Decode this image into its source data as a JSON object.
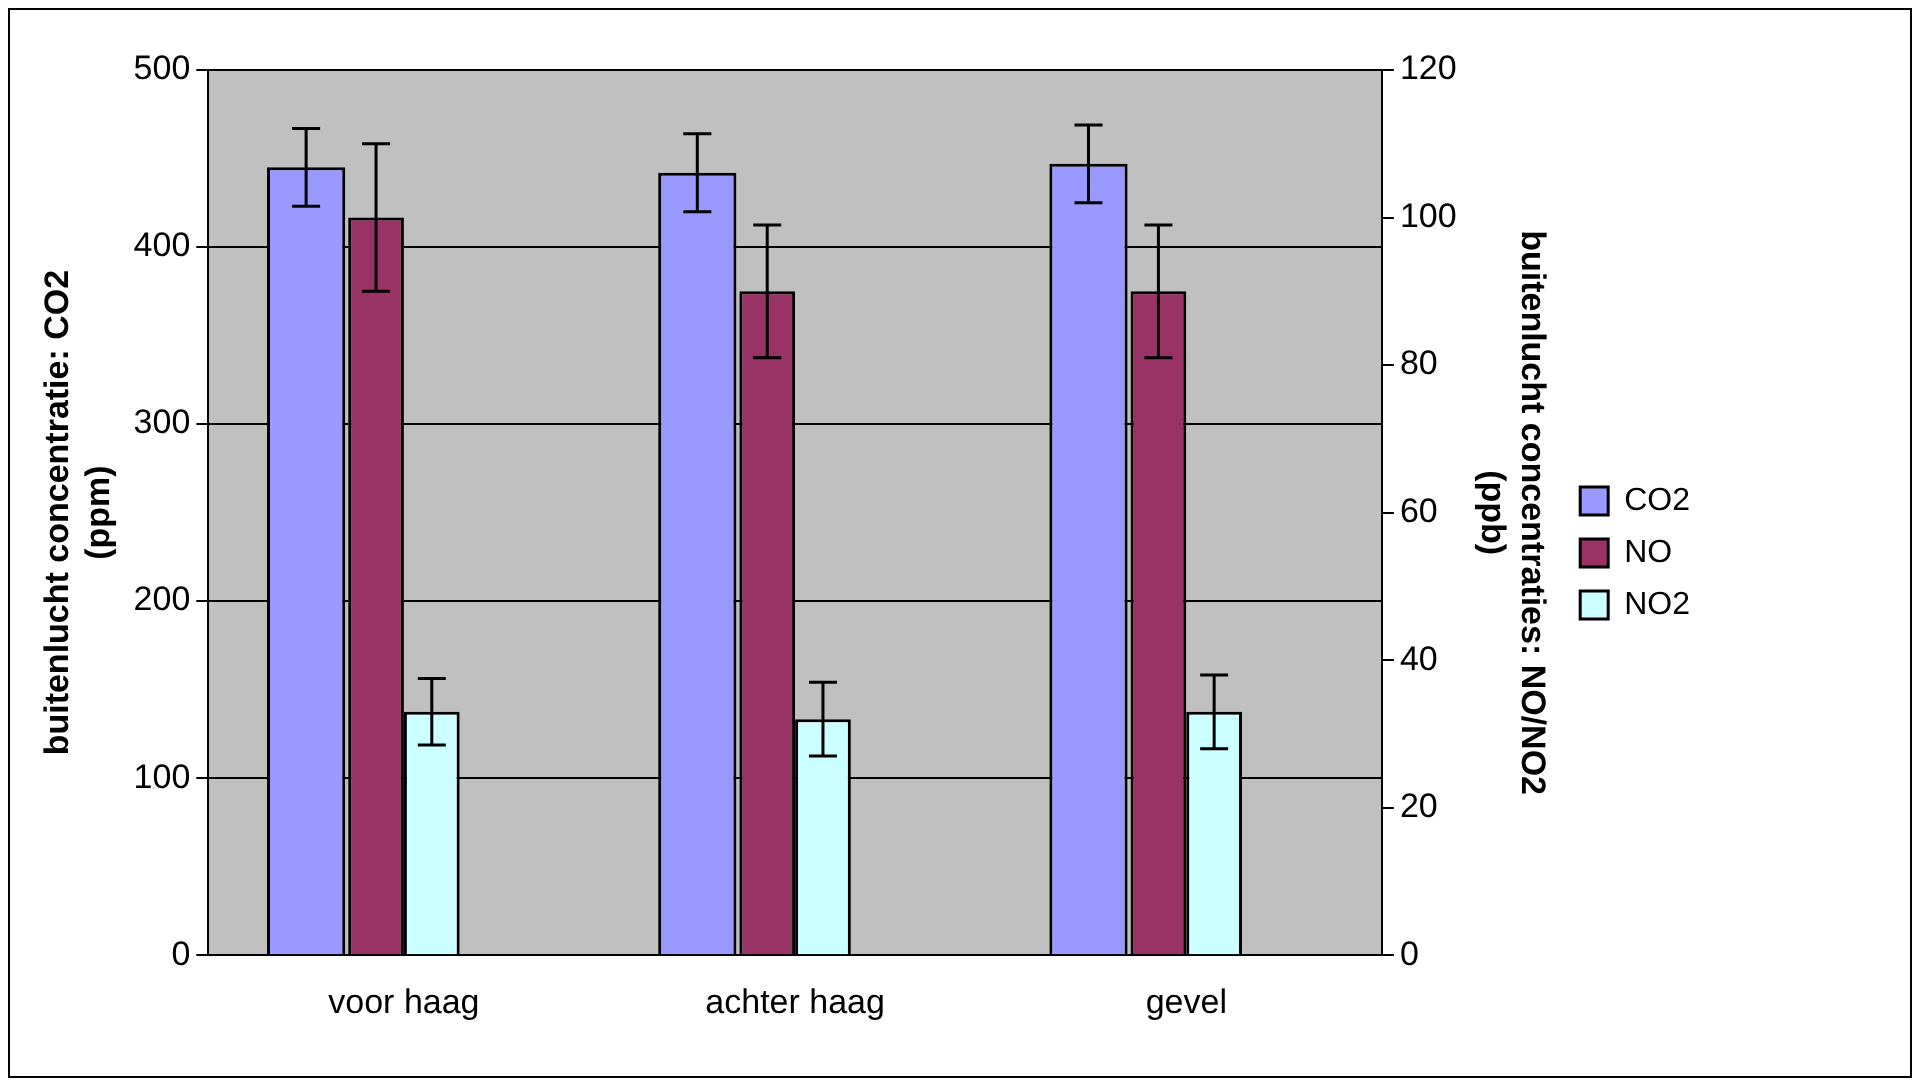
{
  "chart_data": {
    "type": "bar",
    "categories": [
      "voor haag",
      "achter haag",
      "gevel"
    ],
    "ylabel": "buitenlucht concentratie: CO2\n(ppm)",
    "y2label": "buitenlucht concentraties: NO/NO2\n(ppb)",
    "series": [
      {
        "name": "CO2",
        "color": "#9999ff",
        "values": [
          445,
          442,
          447
        ],
        "errors": [
          22,
          22,
          22
        ]
      },
      {
        "name": "NO",
        "color": "#993366",
        "values": [
          100,
          90,
          90
        ],
        "errors": [
          10,
          9,
          9
        ],
        "axis": "y2"
      },
      {
        "name": "NO2",
        "color": "#ccffff",
        "values": [
          33,
          32,
          33
        ],
        "errors": [
          4.5,
          5,
          5
        ],
        "axis": "y2"
      }
    ],
    "ylim": [
      0,
      500
    ],
    "yticks": [
      0,
      100,
      200,
      300,
      400,
      500
    ],
    "y2lim": [
      0,
      120
    ],
    "y2ticks": [
      0,
      20,
      40,
      60,
      80,
      100,
      120
    ],
    "grid": "y",
    "legend": "right"
  }
}
